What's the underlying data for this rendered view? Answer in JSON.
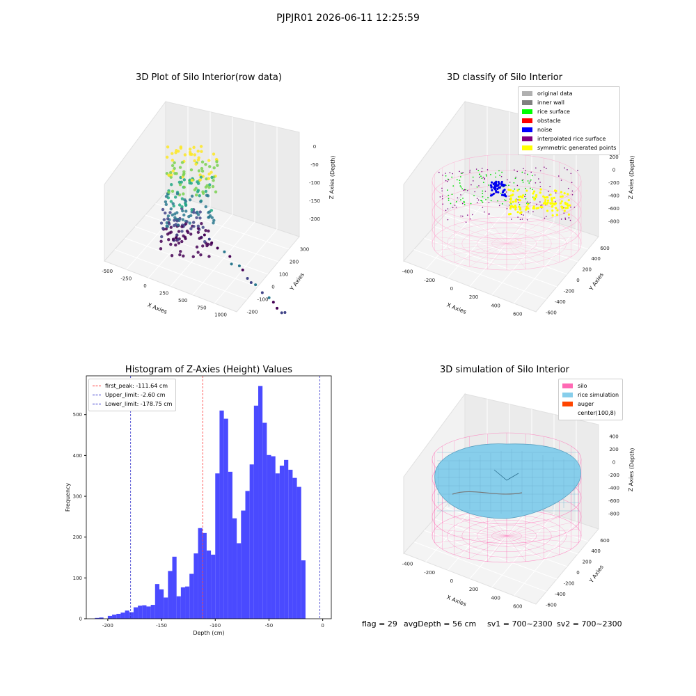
{
  "figure": {
    "title": "PJPJR01 2026-06-11 12:25:59"
  },
  "chart_data": [
    {
      "type": "scatter",
      "title": "3D Plot of Silo Interior(row data)",
      "xlabel": "X Axies",
      "ylabel": "Y Axies",
      "zlabel": "Z Axies (Depth)",
      "x_ticks": [
        "-500",
        "-250",
        "0",
        "250",
        "500",
        "750",
        "1000"
      ],
      "y_ticks": [
        "-200",
        "-100",
        "0",
        "100",
        "200",
        "300"
      ],
      "z_ticks": [
        "0",
        "-50",
        "-100",
        "-150",
        "-200"
      ],
      "colormap": "viridis"
    },
    {
      "type": "scatter",
      "title": "3D classify of Silo Interior",
      "xlabel": "X Axies",
      "ylabel": "Y Axies",
      "zlabel": "Z Axies (Depth)",
      "x_ticks": [
        "-400",
        "-200",
        "0",
        "200",
        "400",
        "600"
      ],
      "y_ticks": [
        "-600",
        "-400",
        "-200",
        "0",
        "200",
        "400",
        "600"
      ],
      "z_ticks": [
        "400",
        "200",
        "0",
        "-200",
        "-400",
        "-600",
        "-800"
      ],
      "legend": [
        {
          "label": "original data",
          "color": "#b0b0b0"
        },
        {
          "label": "inner wall",
          "color": "#808080"
        },
        {
          "label": "rice surface",
          "color": "#00ff00"
        },
        {
          "label": "obstacle",
          "color": "#ff0000"
        },
        {
          "label": "noise",
          "color": "#0000ff"
        },
        {
          "label": "interpolated rice surface",
          "color": "#800080"
        },
        {
          "label": "symmetric generated points",
          "color": "#ffff00"
        }
      ]
    },
    {
      "type": "bar",
      "title": "Histogram of Z-Axies (Height) Values",
      "xlabel": "Depth (cm)",
      "ylabel": "Frequency",
      "xlim": [
        -220,
        8
      ],
      "ylim": [
        0,
        595
      ],
      "x_ticks": [
        "-200",
        "-150",
        "-100",
        "-50",
        "0"
      ],
      "y_ticks": [
        "0",
        "100",
        "200",
        "300",
        "400",
        "500"
      ],
      "bin_start": -212,
      "bin_width": 4,
      "values": [
        2,
        3,
        0,
        7,
        10,
        12,
        15,
        20,
        16,
        28,
        32,
        33,
        30,
        34,
        85,
        72,
        52,
        117,
        152,
        55,
        77,
        79,
        110,
        160,
        222,
        210,
        167,
        157,
        356,
        510,
        490,
        360,
        246,
        185,
        265,
        313,
        378,
        522,
        570,
        480,
        401,
        398,
        356,
        375,
        389,
        365,
        345,
        323,
        143
      ],
      "bar_color": "#4a4aff",
      "lines": [
        {
          "label": "first_peak: -111.64 cm",
          "x": -111.64,
          "color": "#ff3333"
        },
        {
          "label": "Upper_limit: -2.60 cm",
          "x": -2.6,
          "color": "#3333cc"
        },
        {
          "label": "Lower_limit: -178.75 cm",
          "x": -178.75,
          "color": "#3333cc"
        }
      ]
    },
    {
      "type": "scatter",
      "title": "3D simulation of Silo Interior",
      "xlabel": "X Axies",
      "ylabel": "Y Axies",
      "zlabel": "Z Axies (Depth)",
      "x_ticks": [
        "-400",
        "-200",
        "0",
        "200",
        "400",
        "600"
      ],
      "y_ticks": [
        "-600",
        "-400",
        "-200",
        "0",
        "200",
        "400",
        "600"
      ],
      "z_ticks": [
        "400",
        "200",
        "0",
        "-200",
        "-400",
        "-600",
        "-800"
      ],
      "legend": [
        {
          "label": "silo",
          "color": "#ff69b4"
        },
        {
          "label": "rice simulation",
          "color": "#87ceeb"
        },
        {
          "label": "auger",
          "color": "#ff4500"
        },
        {
          "label": "center(100,8)",
          "color": ""
        }
      ]
    }
  ],
  "footer": {
    "flag": "flag = 29",
    "avg": "avgDepth = 56 cm",
    "sv1": "sv1 = 700~2300",
    "sv2": "sv2 = 700~2300"
  }
}
